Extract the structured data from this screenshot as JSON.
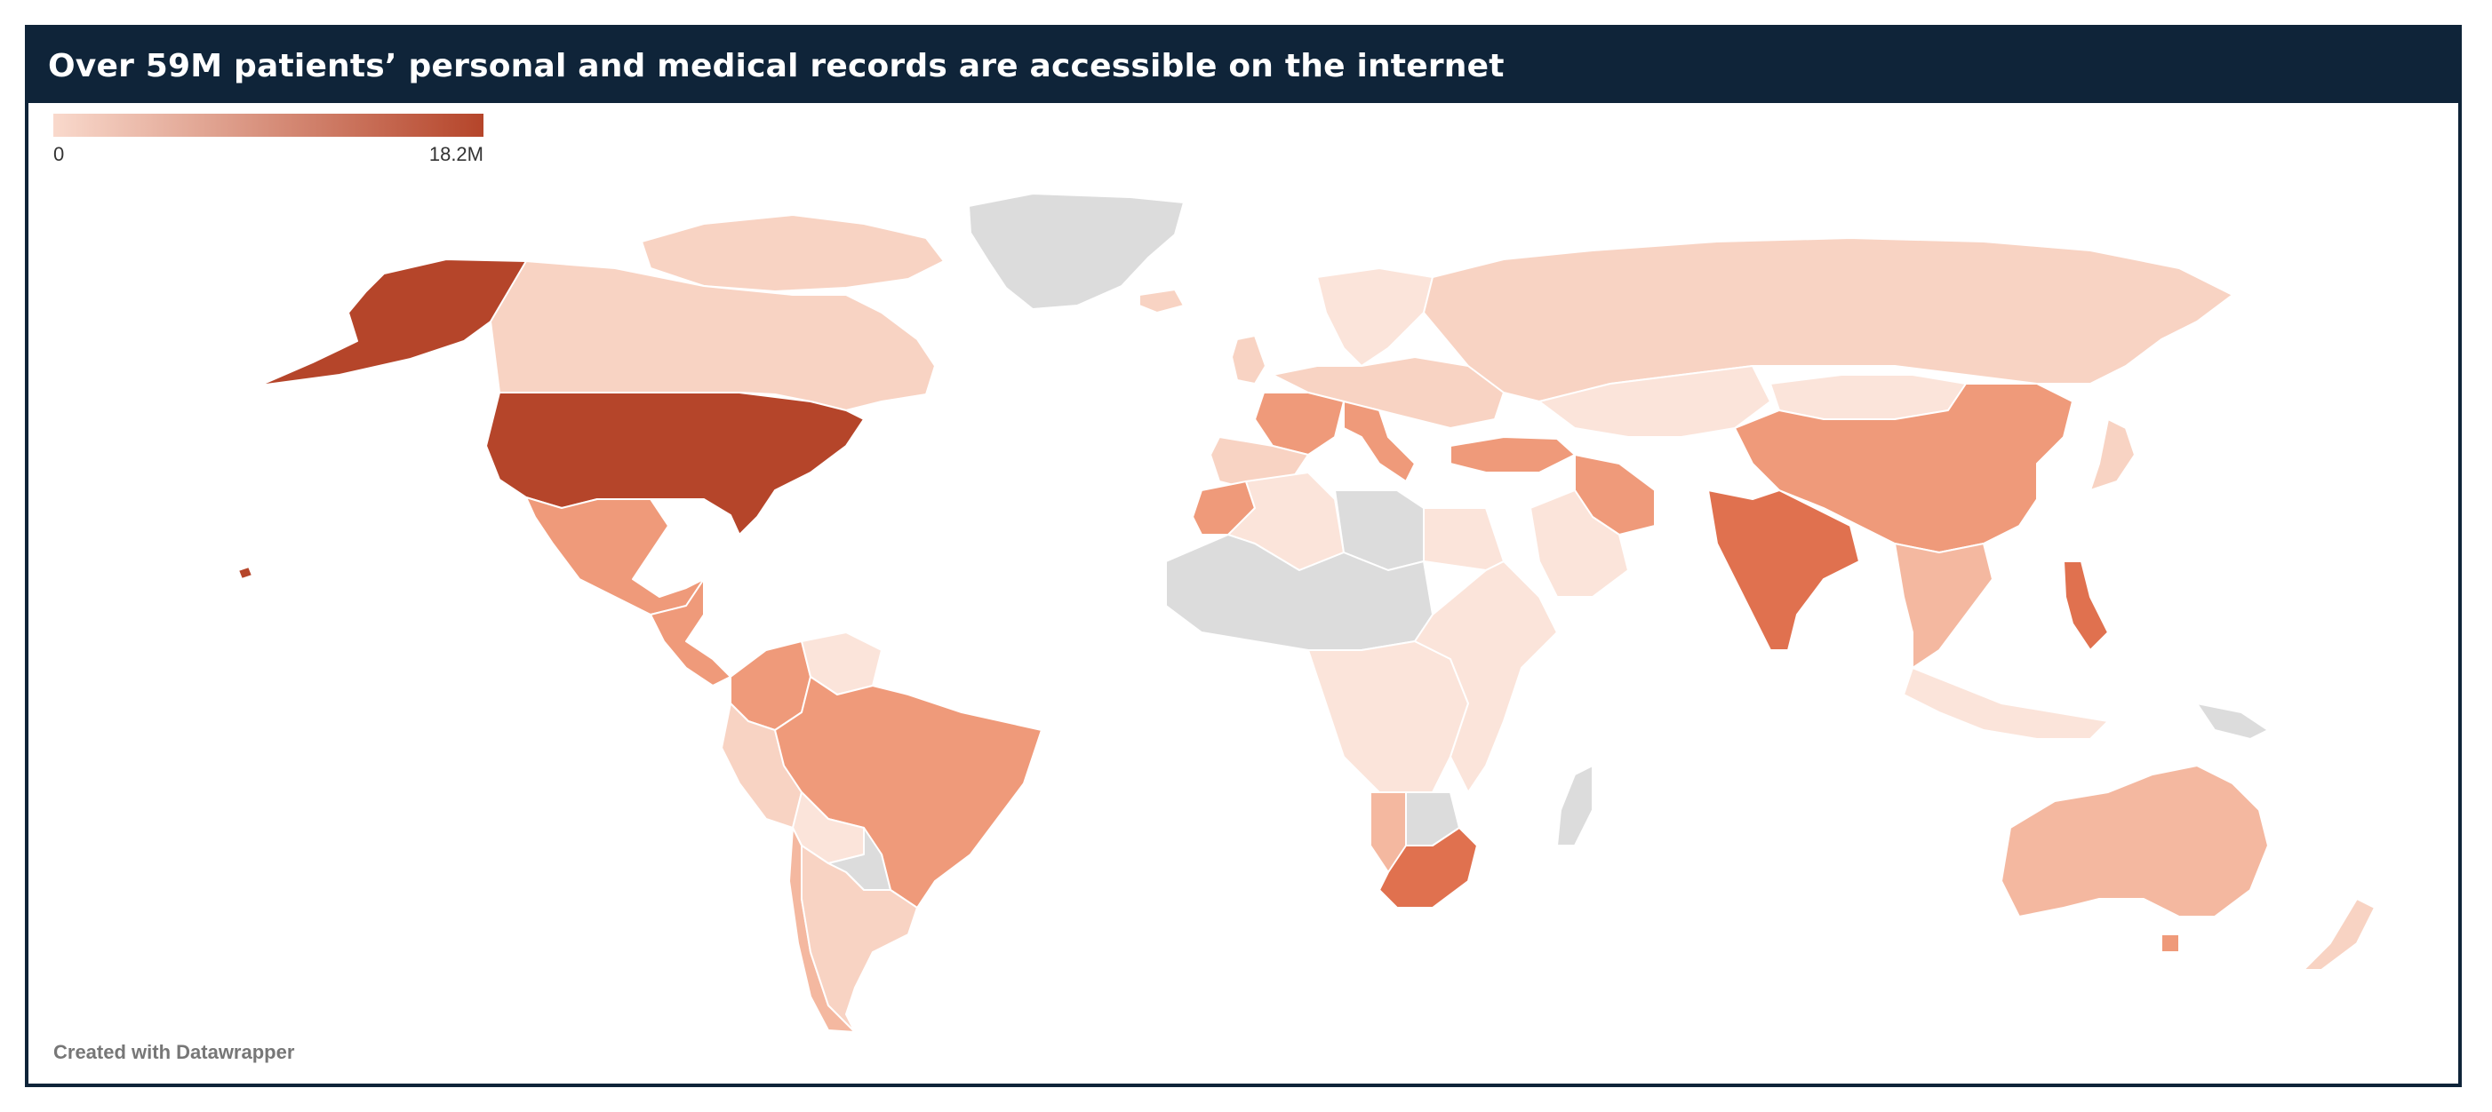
{
  "title": "Over 59M patients’ personal and medical records are accessible on the internet",
  "legend": {
    "min_label": "0",
    "max_label": "18.2M",
    "color_low": "#f9d9cc",
    "color_high": "#b5452a"
  },
  "credit": "Created with Datawrapper",
  "colors": {
    "frame": "#0f2439",
    "no_data": "#dcdcdc",
    "tier_1": "#fbe4da",
    "tier_2": "#f8d3c3",
    "tier_3": "#f4b8a0",
    "tier_4": "#ef9a7a",
    "tier_5": "#e0714f",
    "tier_6": "#b5452a",
    "border": "#ffffff"
  },
  "regions": [
    {
      "name": "United States",
      "tier": "tier_6"
    },
    {
      "name": "Alaska",
      "tier": "tier_6"
    },
    {
      "name": "Canada",
      "tier": "tier_2"
    },
    {
      "name": "Greenland",
      "tier": "no_data"
    },
    {
      "name": "Mexico",
      "tier": "tier_4"
    },
    {
      "name": "Central America",
      "tier": "tier_4"
    },
    {
      "name": "Colombia",
      "tier": "tier_4"
    },
    {
      "name": "Venezuela",
      "tier": "tier_1"
    },
    {
      "name": "Peru",
      "tier": "tier_2"
    },
    {
      "name": "Brazil",
      "tier": "tier_4"
    },
    {
      "name": "Bolivia",
      "tier": "tier_1"
    },
    {
      "name": "Paraguay",
      "tier": "no_data"
    },
    {
      "name": "Argentina",
      "tier": "tier_2"
    },
    {
      "name": "Chile",
      "tier": "tier_3"
    },
    {
      "name": "Russia",
      "tier": "tier_2"
    },
    {
      "name": "Kazakhstan",
      "tier": "tier_1"
    },
    {
      "name": "Europe West",
      "tier": "tier_2"
    },
    {
      "name": "France",
      "tier": "tier_4"
    },
    {
      "name": "Spain",
      "tier": "tier_2"
    },
    {
      "name": "Italy",
      "tier": "tier_4"
    },
    {
      "name": "Turkey",
      "tier": "tier_4"
    },
    {
      "name": "Iran",
      "tier": "tier_4"
    },
    {
      "name": "Saudi Arabia",
      "tier": "tier_1"
    },
    {
      "name": "Morocco",
      "tier": "tier_4"
    },
    {
      "name": "Algeria",
      "tier": "tier_1"
    },
    {
      "name": "Libya",
      "tier": "no_data"
    },
    {
      "name": "Egypt",
      "tier": "tier_1"
    },
    {
      "name": "West Africa",
      "tier": "no_data"
    },
    {
      "name": "Central Africa",
      "tier": "tier_1"
    },
    {
      "name": "East Africa",
      "tier": "tier_1"
    },
    {
      "name": "Namibia",
      "tier": "tier_3"
    },
    {
      "name": "Botswana",
      "tier": "no_data"
    },
    {
      "name": "South Africa",
      "tier": "tier_5"
    },
    {
      "name": "Madagascar",
      "tier": "no_data"
    },
    {
      "name": "China",
      "tier": "tier_4"
    },
    {
      "name": "Mongolia",
      "tier": "tier_1"
    },
    {
      "name": "India",
      "tier": "tier_5"
    },
    {
      "name": "Southeast Asia",
      "tier": "tier_3"
    },
    {
      "name": "Philippines",
      "tier": "tier_5"
    },
    {
      "name": "Japan",
      "tier": "tier_2"
    },
    {
      "name": "Indonesia",
      "tier": "tier_1"
    },
    {
      "name": "Papua New Guinea",
      "tier": "no_data"
    },
    {
      "name": "Australia",
      "tier": "tier_3"
    },
    {
      "name": "Tasmania",
      "tier": "tier_4"
    },
    {
      "name": "New Zealand",
      "tier": "tier_2"
    },
    {
      "name": "Hawaii",
      "tier": "tier_6"
    },
    {
      "name": "Scandinavia",
      "tier": "tier_1"
    },
    {
      "name": "Iceland",
      "tier": "tier_2"
    },
    {
      "name": "Arctic Canada",
      "tier": "tier_2"
    },
    {
      "name": "UK",
      "tier": "tier_2"
    }
  ]
}
